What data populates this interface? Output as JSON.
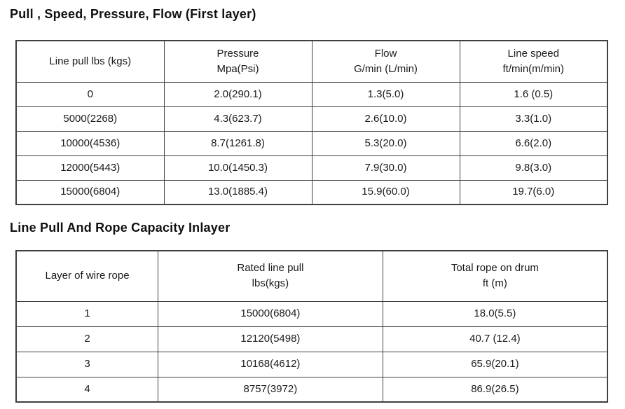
{
  "page": {
    "background": "#ffffff",
    "text_color": "#1a1a1a",
    "border_color": "#3f3f3f"
  },
  "section1": {
    "title": "Pull , Speed, Pressure, Flow (First layer)",
    "table": {
      "headers": [
        "Line pull lbs (kgs)",
        "Pressure\nMpa(Psi)",
        "Flow\nG/min (L/min)",
        "Line speed\nft/min(m/min)"
      ],
      "rows": [
        [
          "0",
          "2.0(290.1)",
          "1.3(5.0)",
          "1.6 (0.5)"
        ],
        [
          "5000(2268)",
          "4.3(623.7)",
          "2.6(10.0)",
          "3.3(1.0)"
        ],
        [
          "10000(4536)",
          "8.7(1261.8)",
          "5.3(20.0)",
          "6.6(2.0)"
        ],
        [
          "12000(5443)",
          "10.0(1450.3)",
          "7.9(30.0)",
          "9.8(3.0)"
        ],
        [
          "15000(6804)",
          "13.0(1885.4)",
          "15.9(60.0)",
          "19.7(6.0)"
        ]
      ]
    }
  },
  "section2": {
    "title": "Line Pull And Rope Capacity Inlayer",
    "table": {
      "headers": [
        "Layer of wire rope",
        "Rated line pull\nlbs(kgs)",
        "Total rope on drum\nft (m)"
      ],
      "rows": [
        [
          "1",
          "15000(6804)",
          "18.0(5.5)"
        ],
        [
          "2",
          "12120(5498)",
          "40.7 (12.4)"
        ],
        [
          "3",
          "10168(4612)",
          "65.9(20.1)"
        ],
        [
          "4",
          "8757(3972)",
          "86.9(26.5)"
        ]
      ]
    }
  }
}
